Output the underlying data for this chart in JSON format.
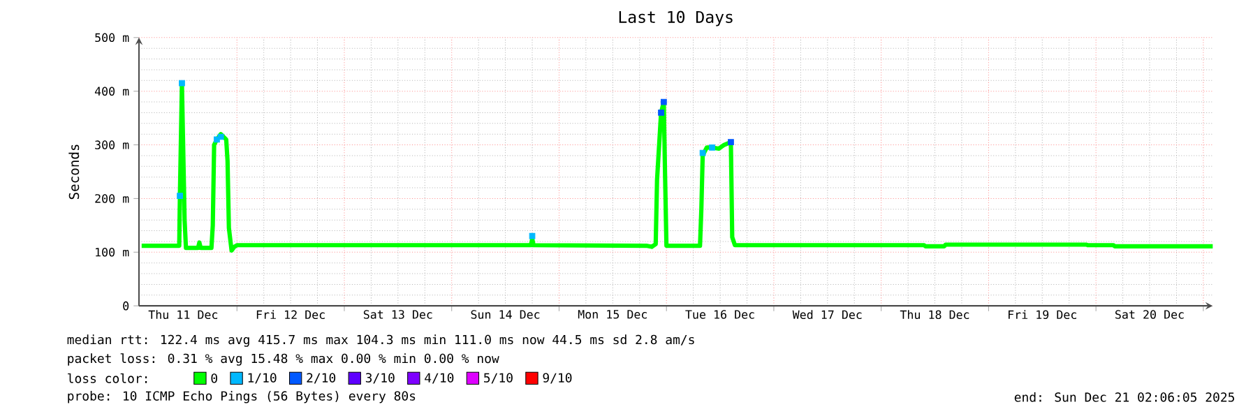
{
  "chart_data": {
    "type": "line",
    "title": "Last 10 Days",
    "ylabel": "Seconds",
    "legend_title": "loss color:",
    "xlim": [
      "2025-12-11T02:06",
      "2025-12-21T02:06"
    ],
    "xticks": [
      {
        "value": "2025-12-11T12:00",
        "label": "Thu 11 Dec"
      },
      {
        "value": "2025-12-12",
        "label": null
      },
      {
        "value": "2025-12-12T12:00",
        "label": "Fri 12 Dec"
      },
      {
        "value": "2025-12-13",
        "label": null
      },
      {
        "value": "2025-12-13T12:00",
        "label": "Sat 13 Dec"
      },
      {
        "value": "2025-12-14",
        "label": null
      },
      {
        "value": "2025-12-14T12:00",
        "label": "Sun 14 Dec"
      },
      {
        "value": "2025-12-15",
        "label": null
      },
      {
        "value": "2025-12-15T12:00",
        "label": "Mon 15 Dec"
      },
      {
        "value": "2025-12-16",
        "label": null
      },
      {
        "value": "2025-12-16T12:00",
        "label": "Tue 16 Dec"
      },
      {
        "value": "2025-12-17",
        "label": null
      },
      {
        "value": "2025-12-17T12:00",
        "label": "Wed 17 Dec"
      },
      {
        "value": "2025-12-18",
        "label": null
      },
      {
        "value": "2025-12-18T12:00",
        "label": "Thu 18 Dec"
      },
      {
        "value": "2025-12-19",
        "label": null
      },
      {
        "value": "2025-12-19T12:00",
        "label": "Fri 19 Dec"
      },
      {
        "value": "2025-12-20",
        "label": null
      },
      {
        "value": "2025-12-20T12:00",
        "label": "Sat 20 Dec"
      },
      {
        "value": "2025-12-21",
        "label": null
      }
    ],
    "ylim": [
      0,
      500
    ],
    "yticks": [
      {
        "value": 0,
        "label": "0"
      },
      {
        "value": 100,
        "label": "100 m"
      },
      {
        "value": 200,
        "label": "200 m"
      },
      {
        "value": 300,
        "label": "300 m"
      },
      {
        "value": 400,
        "label": "400 m"
      },
      {
        "value": 500,
        "label": "500 m"
      }
    ],
    "grid": true,
    "legend": "bottom",
    "series": [
      {
        "name": "0",
        "color": "#00ff00",
        "x": [
          "2025-12-11T02:42",
          "2025-12-11T11:06",
          "2025-12-11T11:15",
          "2025-12-11T11:42",
          "2025-12-11T12:18",
          "2025-12-11T12:36",
          "2025-12-11T15:18",
          "2025-12-11T15:36",
          "2025-12-11T15:54",
          "2025-12-11T18:18",
          "2025-12-11T18:36",
          "2025-12-11T18:54",
          "2025-12-11T19:30",
          "2025-12-11T20:24",
          "2025-12-11T21:36",
          "2025-12-11T21:54",
          "2025-12-11T22:12",
          "2025-12-11T22:48",
          "2025-12-11T23:24",
          "2025-12-12T00:00",
          "2025-12-14T17:42",
          "2025-12-14T18:00",
          "2025-12-14T18:18",
          "2025-12-15T19:30",
          "2025-12-15T20:42",
          "2025-12-15T21:36",
          "2025-12-15T21:54",
          "2025-12-15T22:48",
          "2025-12-15T23:24",
          "2025-12-15T23:42",
          "2025-12-16T00:00",
          "2025-12-16T00:18",
          "2025-12-16T07:30",
          "2025-12-16T07:48",
          "2025-12-16T08:06",
          "2025-12-16T09:00",
          "2025-12-16T10:12",
          "2025-12-16T11:42",
          "2025-12-16T12:54",
          "2025-12-16T14:24",
          "2025-12-16T14:42",
          "2025-12-16T15:18",
          "2025-12-18T09:36",
          "2025-12-18T09:54",
          "2025-12-18T14:06",
          "2025-12-18T14:24",
          "2025-12-19T21:54",
          "2025-12-19T22:12",
          "2025-12-20T03:54",
          "2025-12-20T04:12",
          "2025-12-21T02:06"
        ],
        "values": [
          112,
          112,
          205,
          415,
          160,
          108,
          108,
          118,
          108,
          108,
          150,
          300,
          310,
          320,
          310,
          270,
          145,
          103,
          110,
          113,
          113,
          125,
          113,
          112,
          110,
          115,
          235,
          360,
          380,
          240,
          112,
          112,
          112,
          180,
          280,
          295,
          295,
          293,
          300,
          305,
          128,
          113,
          113,
          111,
          111,
          114,
          114,
          113,
          113,
          111,
          111
        ]
      },
      {
        "name": "1/10",
        "color": "#00b8ff",
        "type": "scatter",
        "marker": "square",
        "x": [
          "2025-12-11T11:15",
          "2025-12-11T11:42",
          "2025-12-11T19:30",
          "2025-12-11T20:24",
          "2025-12-14T18:00",
          "2025-12-16T08:06",
          "2025-12-16T10:12"
        ],
        "values": [
          205,
          415,
          310,
          315,
          130,
          285,
          295
        ]
      },
      {
        "name": "2/10",
        "color": "#0059ff",
        "type": "scatter",
        "marker": "square",
        "x": [
          "2025-12-15T22:48",
          "2025-12-15T23:24",
          "2025-12-16T14:24"
        ],
        "values": [
          360,
          380,
          305
        ]
      },
      {
        "name": "3/10",
        "color": "#5e00ff",
        "type": "scatter",
        "marker": "square"
      },
      {
        "name": "4/10",
        "color": "#7e00ff",
        "type": "scatter",
        "marker": "square"
      },
      {
        "name": "5/10",
        "color": "#dd00ff",
        "type": "scatter",
        "marker": "square"
      },
      {
        "name": "9/10",
        "color": "#ff0000",
        "type": "scatter",
        "marker": "square"
      }
    ],
    "annotations": [
      "median rtt: 122.4 ms avg 415.7 ms max 104.3 ms min 111.0 ms now 44.5 ms sd 2.8 am/s",
      "packet loss: 0.31 % avg 15.48 % max 0.00 % min 0.00 % now",
      "probe: 10 ICMP Echo Pings (56 Bytes) every 80s",
      "end: Sun Dec 21 02:06:05 2025"
    ]
  }
}
